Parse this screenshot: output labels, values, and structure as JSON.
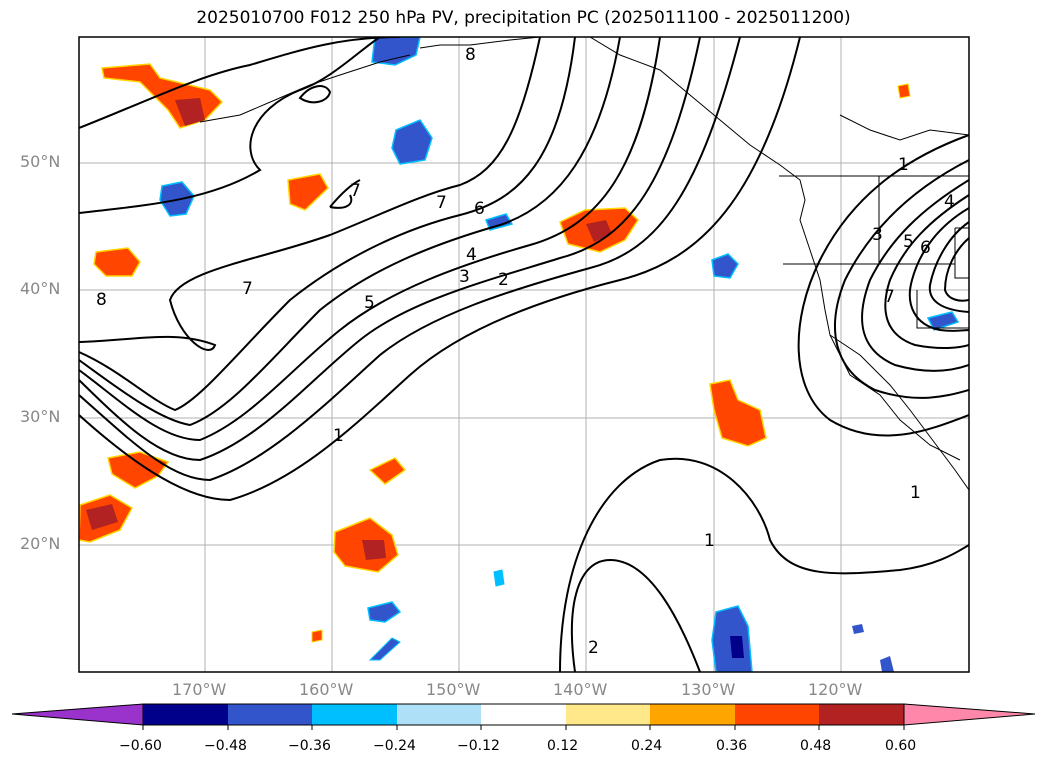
{
  "title": "2025010700 F012 250 hPa PV, precipitation PC (2025011100 - 2025011200)",
  "latitude_labels": [
    "50°N",
    "40°N",
    "30°N",
    "20°N"
  ],
  "longitude_labels": [
    "170°W",
    "160°W",
    "150°W",
    "140°W",
    "130°W",
    "120°W"
  ],
  "contour_labels": [
    "8",
    "8",
    "7",
    "7",
    "7",
    "7",
    "6",
    "6",
    "5",
    "5",
    "4",
    "4",
    "3",
    "3",
    "2",
    "2",
    "1",
    "1",
    "1",
    "1"
  ],
  "colorbar": {
    "tick_labels": [
      "−0.60",
      "−0.48",
      "−0.36",
      "−0.24",
      "−0.12",
      "0.12",
      "0.24",
      "0.36",
      "0.48",
      "0.60"
    ],
    "colors": [
      "#9933cc",
      "#00008b",
      "#3355cc",
      "#00bfff",
      "#aee0f8",
      "#ffffff",
      "#ffe88a",
      "#ffa500",
      "#ff4500",
      "#b22222",
      "#ff88aa"
    ]
  },
  "chart_data": {
    "type": "map",
    "title": "2025010700 F012 250 hPa PV, precipitation PC (2025011100 - 2025011200)",
    "lon_range": [
      -180,
      -110
    ],
    "lat_range": [
      10,
      60
    ],
    "contour_field": "250 hPa PV",
    "contour_levels": [
      1,
      2,
      3,
      4,
      5,
      6,
      7,
      8
    ],
    "shaded_field": "precipitation PC",
    "colorbar_levels": [
      -0.6,
      -0.48,
      -0.36,
      -0.24,
      -0.12,
      0.12,
      0.24,
      0.36,
      0.48,
      0.6
    ],
    "grid": true
  }
}
